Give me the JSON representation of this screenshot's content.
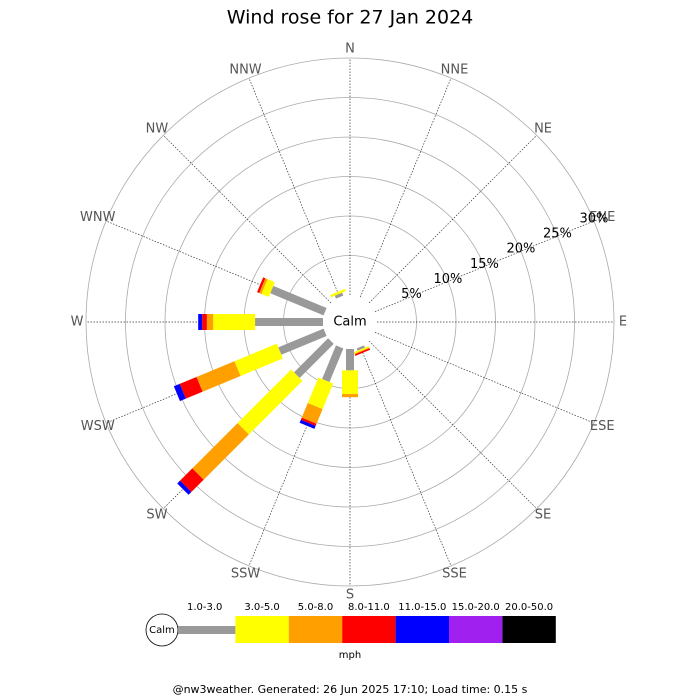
{
  "chart_data": {
    "type": "windrose",
    "title": "Wind rose for 27 Jan 2024",
    "center_label": "Calm",
    "directions": [
      "N",
      "NNE",
      "NE",
      "ENE",
      "E",
      "ESE",
      "SE",
      "SSE",
      "S",
      "SSW",
      "SW",
      "WSW",
      "W",
      "WNW",
      "NW",
      "NNW"
    ],
    "series": [
      {
        "name": "1.0-3.0",
        "color": "#999999",
        "values": [
          0,
          0,
          0,
          0,
          0,
          0,
          0,
          0.3,
          2.7,
          4.6,
          6.1,
          6.2,
          8.6,
          7.3,
          0,
          0.4
        ]
      },
      {
        "name": "3.0-5.0",
        "color": "#ffff00",
        "values": [
          0,
          0,
          0,
          0,
          0,
          0,
          0,
          0.2,
          3.0,
          3.5,
          9.6,
          5.8,
          5.3,
          1.0,
          0,
          0.3
        ]
      },
      {
        "name": "5.0-8.0",
        "color": "#ffa000",
        "values": [
          0,
          0,
          0,
          0,
          0,
          0,
          0,
          0.1,
          0.4,
          2.0,
          8.1,
          5.2,
          0.8,
          0.3,
          0,
          0
        ]
      },
      {
        "name": "8.0-11.0",
        "color": "#ff0000",
        "values": [
          0,
          0,
          0,
          0,
          0,
          0,
          0,
          0.2,
          0,
          0.3,
          2.2,
          2.3,
          0.6,
          0.3,
          0,
          0
        ]
      },
      {
        "name": "11.0-15.0",
        "color": "#0000ff",
        "values": [
          0,
          0,
          0,
          0,
          0,
          0,
          0,
          0,
          0,
          0.4,
          0.5,
          0.8,
          0.5,
          0,
          0,
          0
        ]
      },
      {
        "name": "15.0-20.0",
        "color": "#a020f0",
        "values": [
          0,
          0,
          0,
          0,
          0,
          0,
          0,
          0,
          0,
          0,
          0,
          0,
          0,
          0,
          0,
          0
        ]
      },
      {
        "name": "20.0-50.0",
        "color": "#000000",
        "values": [
          0,
          0,
          0,
          0,
          0,
          0,
          0,
          0,
          0,
          0,
          0,
          0,
          0,
          0,
          0,
          0
        ]
      }
    ],
    "rlim": [
      0,
      30
    ],
    "rticks": [
      {
        "value": 5,
        "label": "5%"
      },
      {
        "value": 10,
        "label": "10%"
      },
      {
        "value": 15,
        "label": "15%"
      },
      {
        "value": 20,
        "label": "20%"
      },
      {
        "value": 25,
        "label": "25%"
      },
      {
        "value": 30,
        "label": "30%"
      }
    ],
    "legend_unit": "mph",
    "footer": "@nw3weather. Generated: 26 Jun 2025 17:10; Load time: 0.15 s"
  }
}
